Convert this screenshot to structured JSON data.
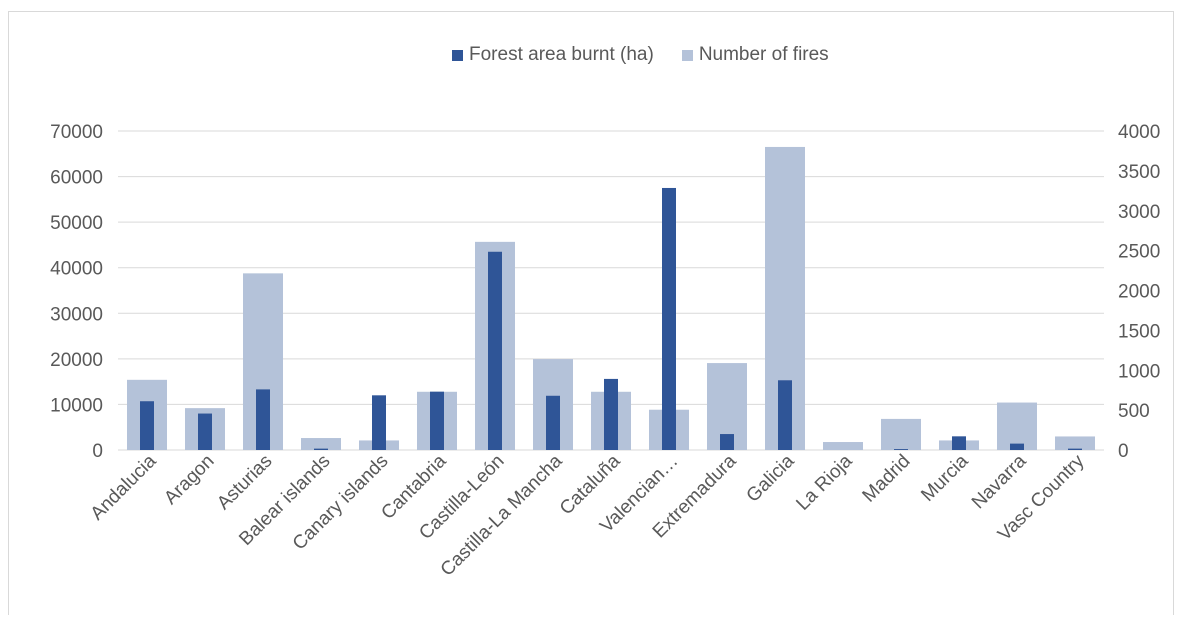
{
  "chart_data": {
    "type": "bar",
    "title": "",
    "xlabel": "",
    "ylabel": "",
    "categories": [
      "Andalucia",
      "Aragon",
      "Asturias",
      "Balear islands",
      "Canary islands",
      "Cantabria",
      "Castilla-León",
      "Castilla-La Mancha",
      "Cataluña",
      "Valencian…",
      "Extremadura",
      "Galicia",
      "La Rioja",
      "Madrid",
      "Murcia",
      "Navarra",
      "Vasc Country"
    ],
    "series": [
      {
        "name": "Forest area burnt (ha)",
        "axis": "left",
        "color": "#2f5597",
        "values": [
          10700,
          8000,
          13300,
          300,
          12000,
          12800,
          43500,
          11900,
          15600,
          57500,
          3500,
          15300,
          0,
          200,
          3000,
          1400,
          300
        ]
      },
      {
        "name": "Number of fires",
        "axis": "right",
        "color": "#b4c2d9",
        "values": [
          880,
          525,
          2215,
          150,
          120,
          730,
          2610,
          1140,
          730,
          505,
          1090,
          3800,
          100,
          390,
          120,
          595,
          170
        ]
      }
    ],
    "ylim_left": [
      0,
      70000
    ],
    "yticks_left": [
      0,
      10000,
      20000,
      30000,
      40000,
      50000,
      60000,
      70000
    ],
    "ylim_right": [
      0,
      4000
    ],
    "yticks_right": [
      0,
      500,
      1000,
      1500,
      2000,
      2500,
      3000,
      3500,
      4000
    ],
    "grid": true,
    "legend_position": "top"
  },
  "legend": {
    "burnt_label": "Forest area burnt (ha)",
    "fires_label": "Number of fires",
    "burnt_color": "#2f5597",
    "fires_color": "#b4c2d9"
  }
}
